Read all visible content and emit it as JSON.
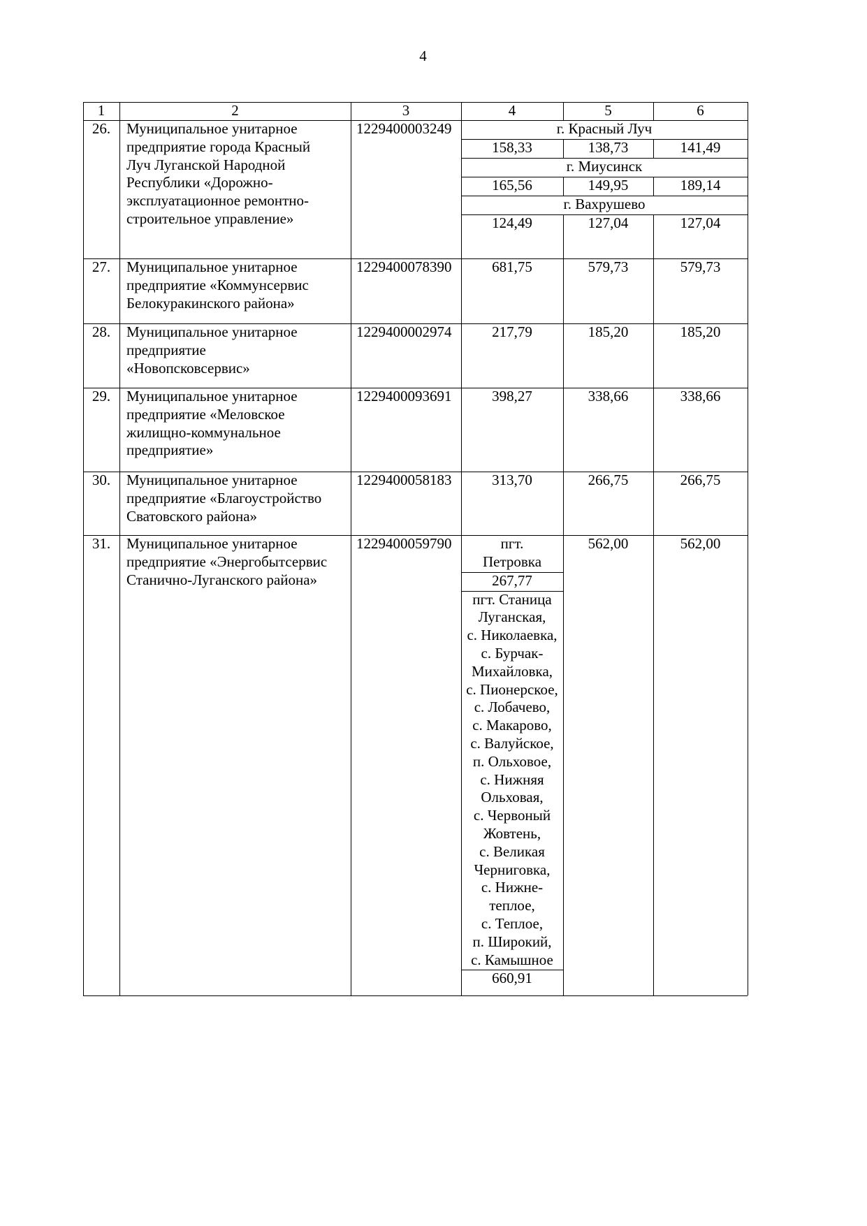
{
  "page_number": "4",
  "table": {
    "headers": [
      "1",
      "2",
      "3",
      "4",
      "5",
      "6"
    ],
    "rows": [
      {
        "num": "26.",
        "name": "Муниципальное унитарное предприятие города Красный Луч Луганской Народной Республики «Дорожно-эксплуатационное ремонтно-строительное управление»",
        "name_lines": [
          "Муниципальное унитарное",
          "предприятие города Красный",
          "Луч Луганской Народной",
          "Республики «Дорожно-",
          "эксплуатационное ремонтно-",
          "строительное управление»"
        ],
        "ogrn": "1229400003249",
        "localities": [
          {
            "place": "г. Красный Луч",
            "c4": "158,33",
            "c5": "138,73",
            "c6": "141,49"
          },
          {
            "place": "г. Миусинск",
            "c4": "165,56",
            "c5": "149,95",
            "c6": "189,14"
          },
          {
            "place": "г. Вахрушево",
            "c4": "124,49",
            "c5": "127,04",
            "c6": "127,04"
          }
        ]
      },
      {
        "num": "27.",
        "name_lines": [
          "Муниципальное унитарное",
          "предприятие «Коммунсервис",
          "Белокуракинского района»"
        ],
        "ogrn": "1229400078390",
        "c4": "681,75",
        "c5": "579,73",
        "c6": "579,73"
      },
      {
        "num": "28.",
        "name_lines": [
          "Муниципальное унитарное",
          "предприятие",
          "«Новопсковсервис»"
        ],
        "ogrn": "1229400002974",
        "c4": "217,79",
        "c5": "185,20",
        "c6": "185,20"
      },
      {
        "num": "29.",
        "name_lines": [
          "Муниципальное унитарное",
          "предприятие «Меловское",
          "жилищно-коммунальное",
          "предприятие»"
        ],
        "ogrn": "1229400093691",
        "c4": "398,27",
        "c5": "338,66",
        "c6": "338,66"
      },
      {
        "num": "30.",
        "name_lines": [
          "Муниципальное унитарное",
          "предприятие «Благоустройство",
          "Сватовского района»"
        ],
        "ogrn": "1229400058183",
        "c4": "313,70",
        "c5": "266,75",
        "c6": "266,75"
      },
      {
        "num": "31.",
        "name_lines": [
          "Муниципальное унитарное",
          "предприятие «Энергобытсервис",
          "Станично-Луганского района»"
        ],
        "ogrn": "1229400059790",
        "c4_parts": [
          {
            "place_lines": [
              "пгт.",
              "Петровка"
            ],
            "value": "267,77"
          },
          {
            "place_lines": [
              "пгт. Станица",
              "Луганская,",
              "с. Николаевка,",
              "с. Бурчак-",
              "Михайловка,",
              "с. Пионерское,",
              "с. Лобачево,",
              "с. Макарово,",
              "с. Валуйское,",
              "п. Ольховое,",
              "с. Нижняя",
              "Ольховая,",
              "с. Червоный",
              "Жовтень,",
              "с. Великая",
              "Черниговка,",
              "с. Нижне-",
              "теплое,",
              "с. Теплое,",
              "п. Широкий,",
              "с. Камышное"
            ],
            "value": "660,91"
          }
        ],
        "c5": "562,00",
        "c6": "562,00"
      }
    ]
  }
}
